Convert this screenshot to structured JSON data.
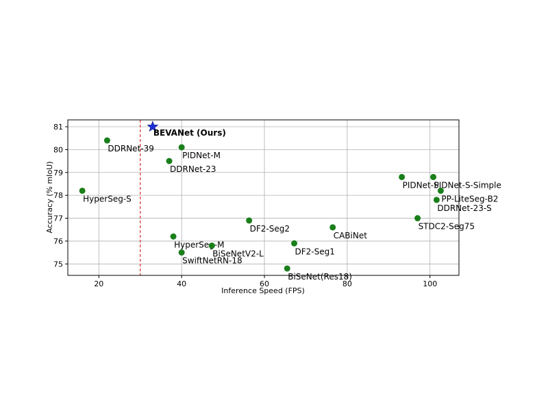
{
  "chart_data": {
    "type": "scatter",
    "title": "",
    "xlabel": "Inference Speed (FPS)",
    "ylabel": "Accuracy (% mIoU)",
    "xlim": [
      12.5,
      107
    ],
    "ylim": [
      74.5,
      81.3
    ],
    "xticks": [
      20,
      40,
      60,
      80,
      100
    ],
    "yticks": [
      75,
      76,
      77,
      78,
      79,
      80,
      81
    ],
    "grid": true,
    "reference_line": {
      "x": 30,
      "style": "dashed",
      "color": "#d62728"
    },
    "point_color": "#1a7f1a",
    "highlight_color": "#1f2fd6",
    "points": [
      {
        "label": "BEVANet (Ours)",
        "x": 33,
        "y": 81.0,
        "highlight": true
      },
      {
        "label": "DDRNet-39",
        "x": 22,
        "y": 80.4
      },
      {
        "label": "PIDNet-M",
        "x": 40,
        "y": 80.1
      },
      {
        "label": "DDRNet-23",
        "x": 37,
        "y": 79.5
      },
      {
        "label": "HyperSeg-S",
        "x": 16,
        "y": 78.2
      },
      {
        "label": "PIDNet-S",
        "x": 93.2,
        "y": 78.8
      },
      {
        "label": "PIDNet-S-Simple",
        "x": 100.8,
        "y": 78.8
      },
      {
        "label": "PP-LiteSeg-B2",
        "x": 102.6,
        "y": 78.2
      },
      {
        "label": "DDRNet-23-S",
        "x": 101.6,
        "y": 77.8
      },
      {
        "label": "STDC2-Seg75",
        "x": 97,
        "y": 77.0
      },
      {
        "label": "DF2-Seg2",
        "x": 56.3,
        "y": 76.9
      },
      {
        "label": "CABiNet",
        "x": 76.5,
        "y": 76.6
      },
      {
        "label": "HyperSeg-M",
        "x": 38,
        "y": 76.2
      },
      {
        "label": "BiSeNetV2-L",
        "x": 47.3,
        "y": 75.8
      },
      {
        "label": "DF2-Seg1",
        "x": 67.2,
        "y": 75.9
      },
      {
        "label": "SwiftNetRN-18",
        "x": 40,
        "y": 75.5
      },
      {
        "label": "BiSeNet(Res18)",
        "x": 65.5,
        "y": 74.8
      }
    ]
  }
}
